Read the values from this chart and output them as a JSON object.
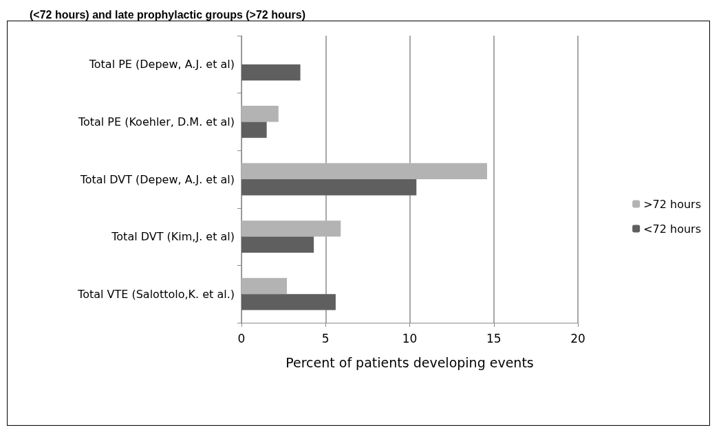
{
  "chart_data": {
    "type": "bar",
    "orientation": "horizontal",
    "title": "(<72 hours) and late prophylactic groups (>72 hours)",
    "xlabel": "Percent of patients developing events",
    "categories": [
      "Total PE (Depew, A.J. et al)",
      "Total PE (Koehler, D.M. et al)",
      "Total DVT (Depew, A.J. et al)",
      "Total DVT (Kim,J. et al)",
      "Total VTE (Salottolo,K. et al.)"
    ],
    "series": [
      {
        "name": ">72 hours",
        "color": "#b3b3b3",
        "values": [
          null,
          2.2,
          14.6,
          5.9,
          2.7
        ]
      },
      {
        "name": "<72 hours",
        "color": "#5f5f5f",
        "values": [
          3.5,
          1.5,
          10.4,
          4.3,
          5.6
        ]
      }
    ],
    "xlim": [
      0,
      20
    ],
    "xticks": [
      0,
      5,
      10,
      15,
      20
    ],
    "grid": "x",
    "legend": "right"
  }
}
